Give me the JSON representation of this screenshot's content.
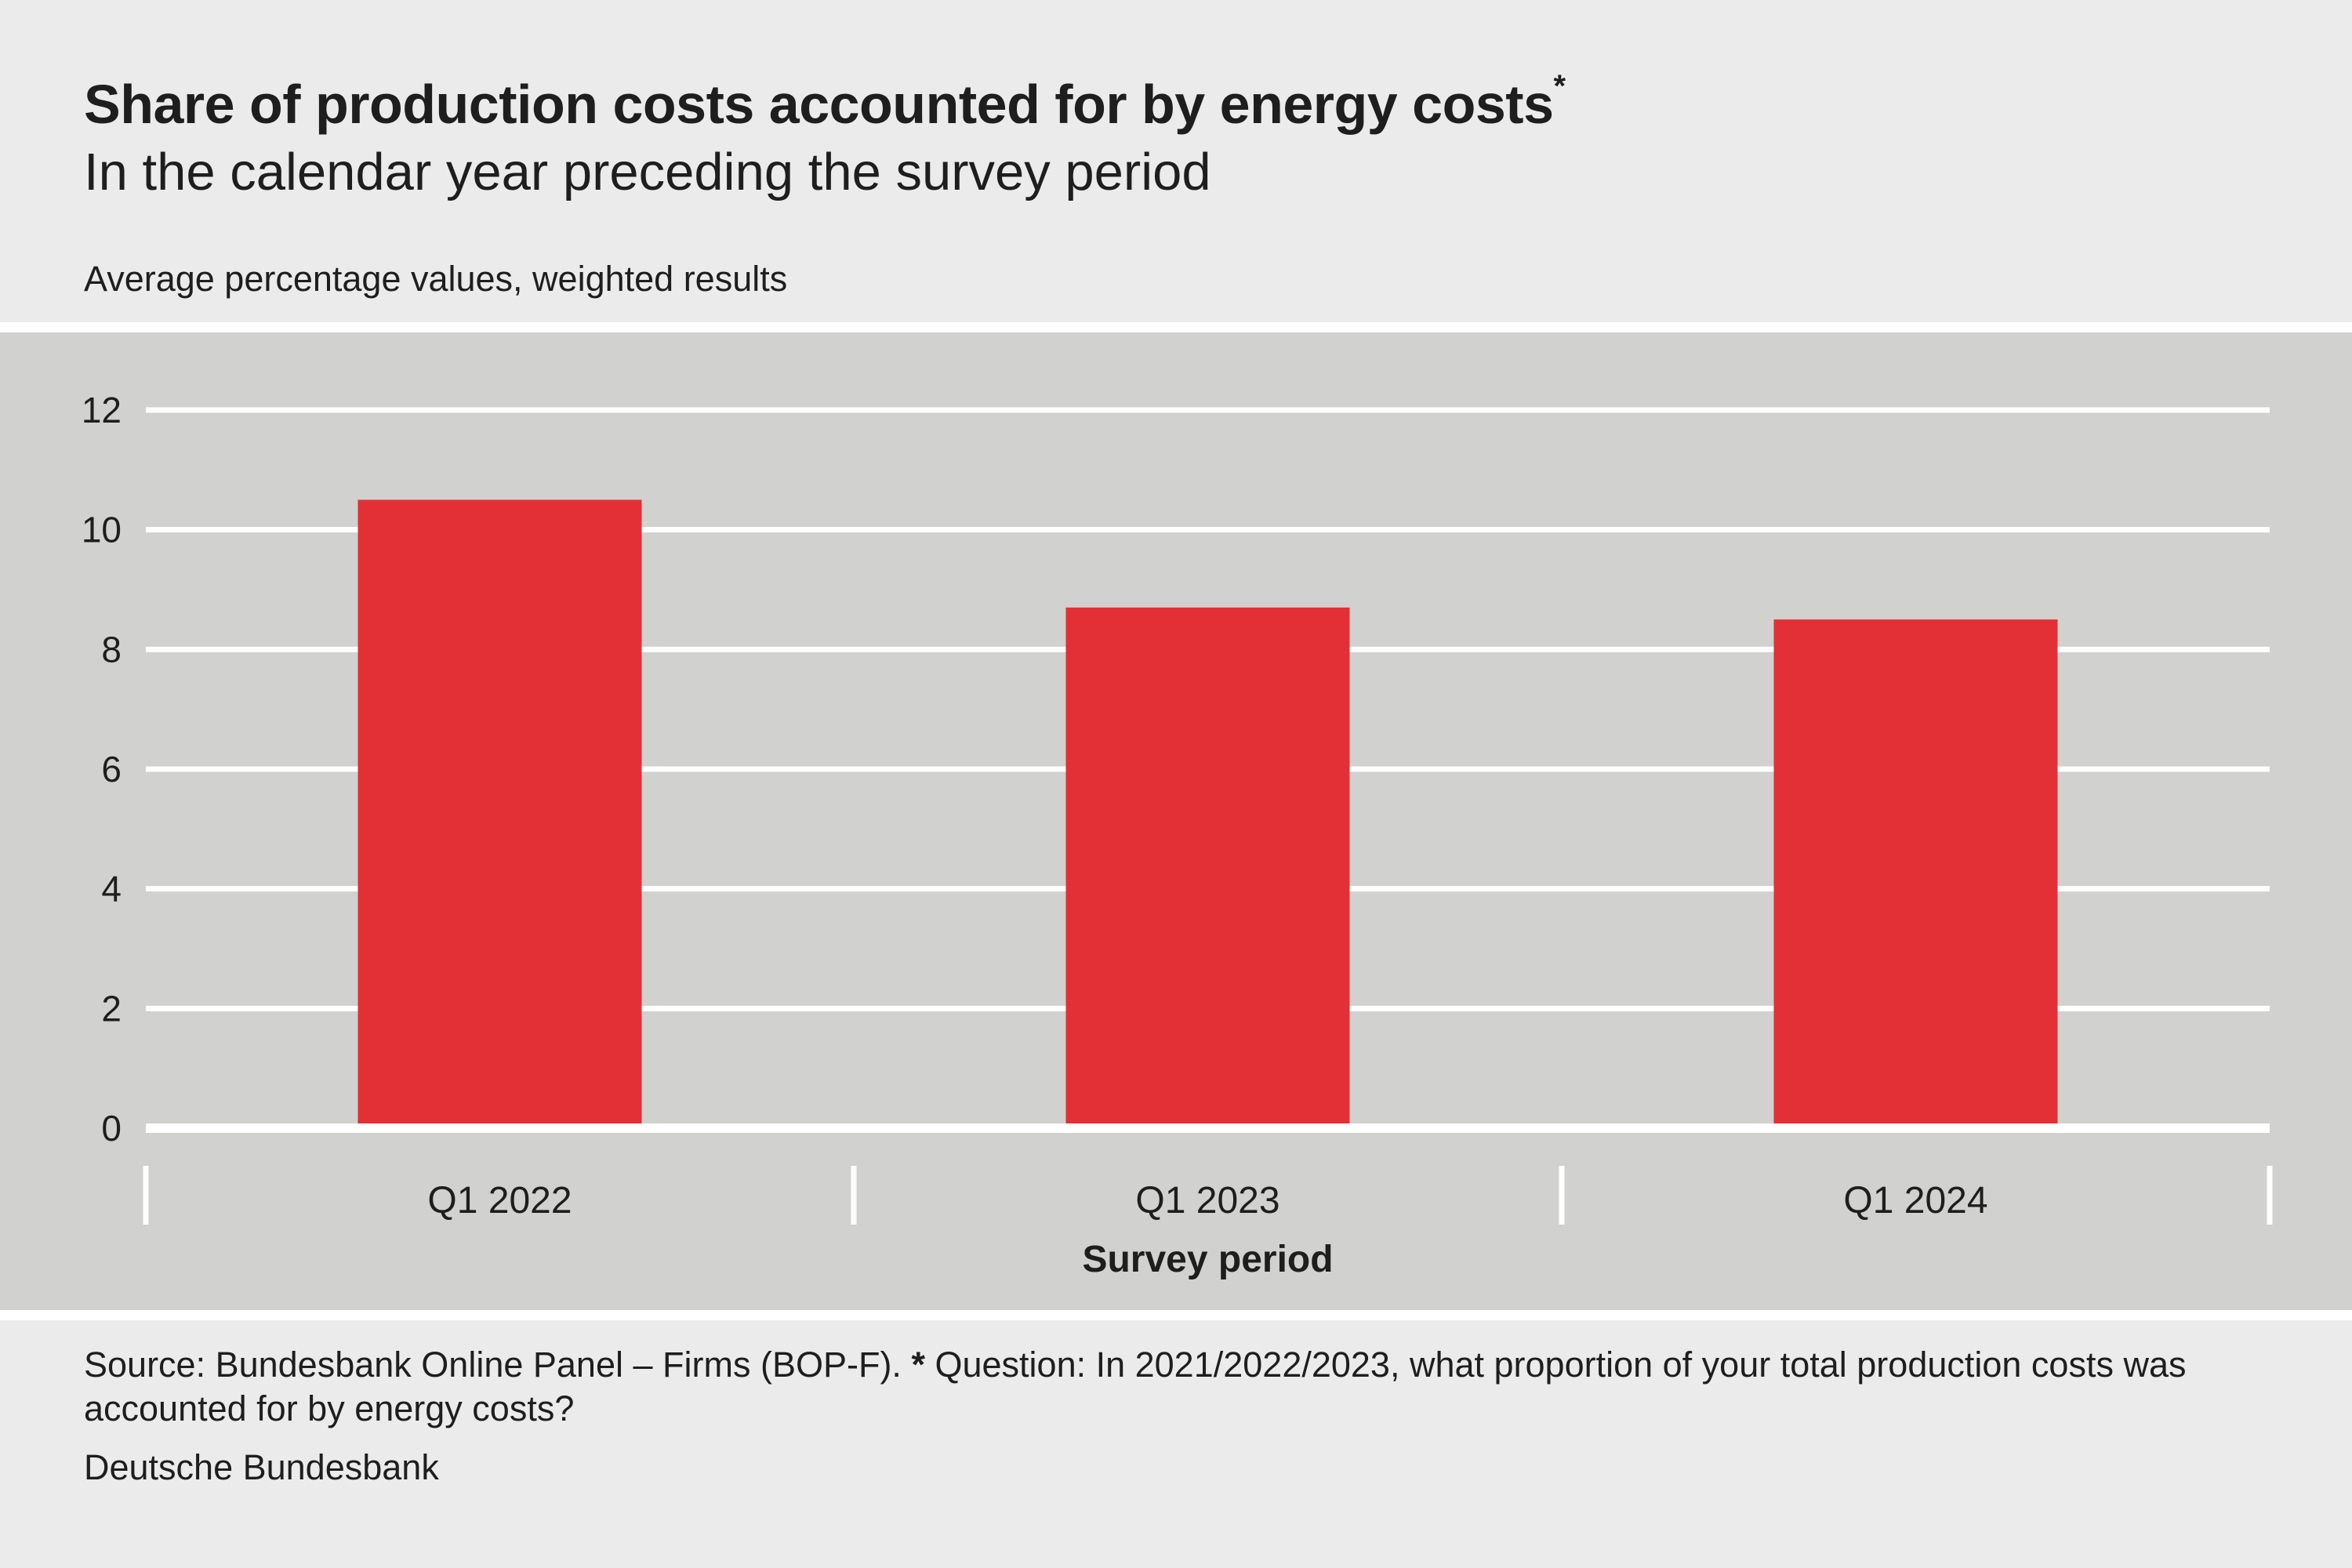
{
  "header": {
    "title": "Share of production costs accounted for by energy costs",
    "title_marker": "*",
    "subtitle": "In the calendar year preceding the survey period",
    "units_note": "Average percentage values, weighted results"
  },
  "footer": {
    "source": "Source: Bundesbank Online Panel – Firms (BOP-F).",
    "note_marker": "*",
    "note": "Question: In 2021/2022/2023, what proportion of your total production costs was accounted for by energy costs?",
    "publisher": "Deutsche Bundesbank"
  },
  "colors": {
    "bar": "#e33036",
    "plot_background": "#d1d1cf",
    "page_background": "#ebebeb",
    "gridline": "#ffffff",
    "text": "#1e1e1e"
  },
  "chart_data": {
    "type": "bar",
    "categories": [
      "Q1 2022",
      "Q1 2023",
      "Q1 2024"
    ],
    "values": [
      10.5,
      8.7,
      8.5
    ],
    "title": "Share of production costs accounted for by energy costs",
    "xlabel": "Survey period",
    "ylabel": "",
    "ylim": [
      0,
      12
    ],
    "yticks": [
      0,
      2,
      4,
      6,
      8,
      10,
      12
    ],
    "grid": true,
    "legend": "none"
  }
}
